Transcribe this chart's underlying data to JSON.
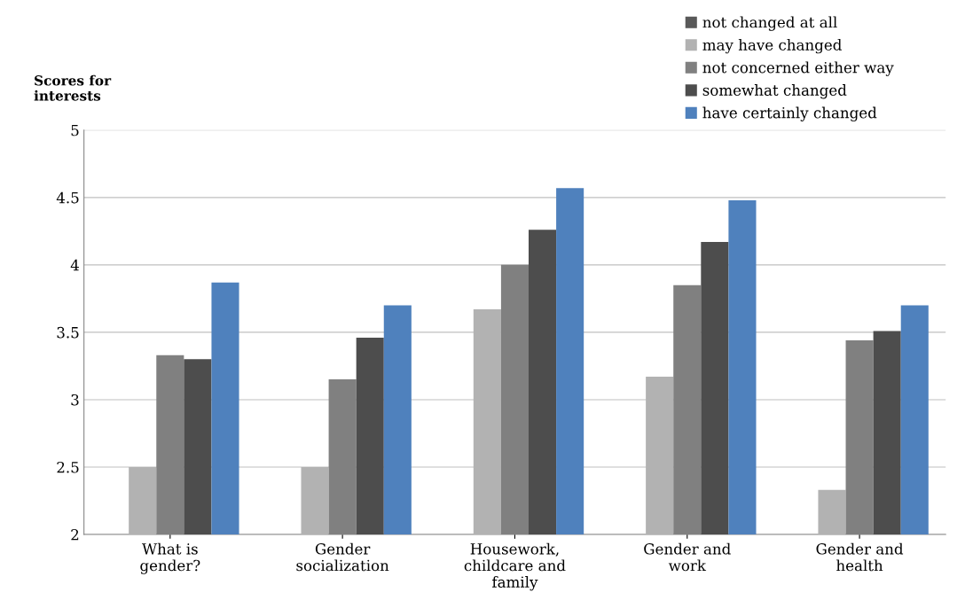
{
  "chart_data": {
    "type": "bar",
    "ylabel": "Scores for\ninterests",
    "categories": [
      "What is\ngender?",
      "Gender\nsocialization",
      "Housework,\nchildcare and\nfamily",
      "Gender and\nwork",
      "Gender and\nhealth"
    ],
    "series": [
      {
        "name": "not changed at all",
        "color": "#595959",
        "values": [
          2,
          2,
          2,
          2,
          2
        ]
      },
      {
        "name": "may have changed",
        "color": "#b2b2b2",
        "values": [
          2.5,
          2.5,
          3.67,
          3.17,
          2.33
        ]
      },
      {
        "name": "not concerned either way",
        "color": "#808080",
        "values": [
          3.33,
          3.15,
          4.0,
          3.85,
          3.44
        ]
      },
      {
        "name": "somewhat changed",
        "color": "#4d4d4d",
        "values": [
          3.3,
          3.46,
          4.26,
          4.17,
          3.51
        ]
      },
      {
        "name": "have certainly changed",
        "color": "#4f81bd",
        "values": [
          3.87,
          3.7,
          4.57,
          4.48,
          3.7
        ]
      }
    ],
    "ylim": [
      2,
      5
    ],
    "yticks": [
      2,
      2.5,
      3,
      3.5,
      4,
      4.5,
      5
    ],
    "grid": "y",
    "legend": "top right"
  }
}
